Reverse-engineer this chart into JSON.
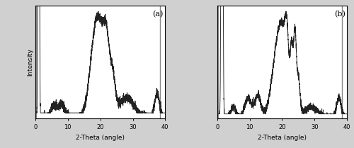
{
  "title_a": "(a)",
  "title_b": "(b)",
  "xlabel": "2-Theta (angle)",
  "ylabel": "Intensity",
  "xlim": [
    0,
    40
  ],
  "line_color": "#222222",
  "panel_bg": "#ffffff",
  "fig_bg": "#d0d0d0"
}
